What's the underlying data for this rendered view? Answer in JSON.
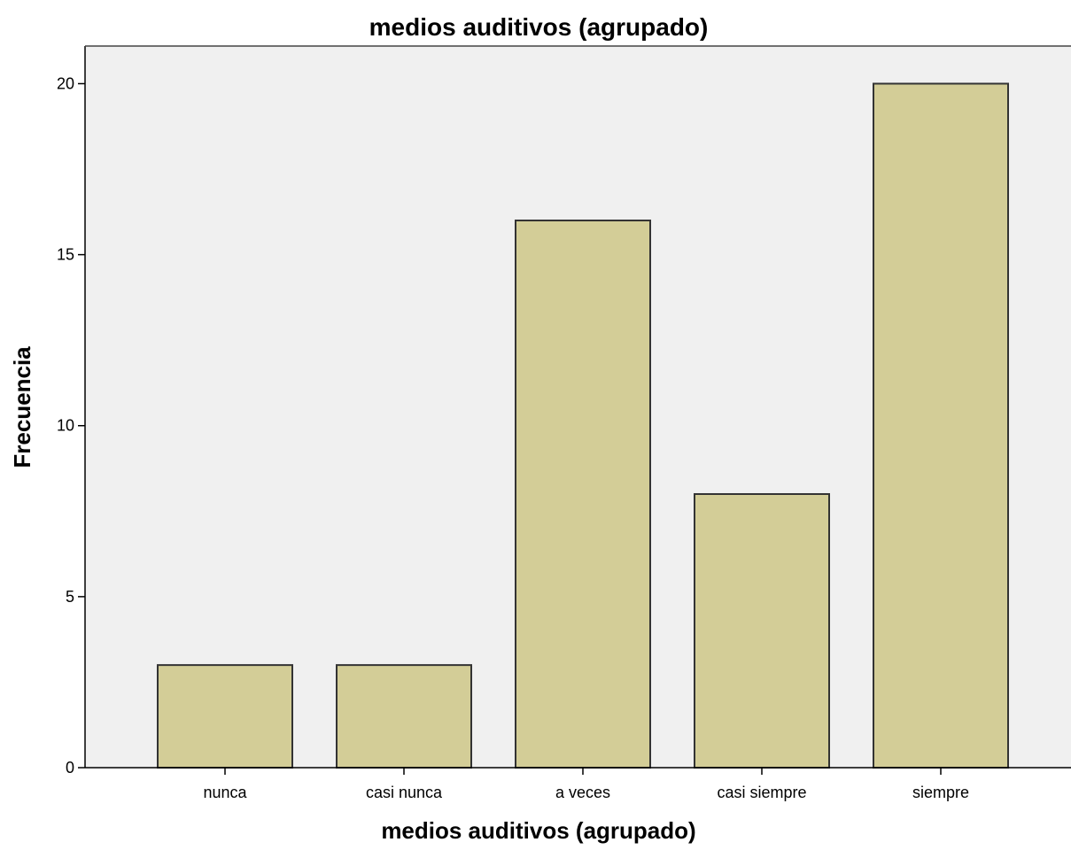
{
  "chart_data": {
    "type": "bar",
    "title": "medios auditivos (agrupado)",
    "xlabel": "medios auditivos (agrupado)",
    "ylabel": "Frecuencia",
    "categories": [
      "nunca",
      "casi nunca",
      "a veces",
      "casi siempre",
      "siempre"
    ],
    "values": [
      3,
      3,
      16,
      8,
      20
    ],
    "ylim": [
      0,
      21.1
    ],
    "yticks": [
      0,
      5,
      10,
      15,
      20
    ],
    "grid": false,
    "legend": "none",
    "colors": {
      "plot_background": "#f0f0f0",
      "bar_fill": "#d3cd97",
      "bar_stroke": "#333333",
      "axis": "#000000"
    }
  }
}
